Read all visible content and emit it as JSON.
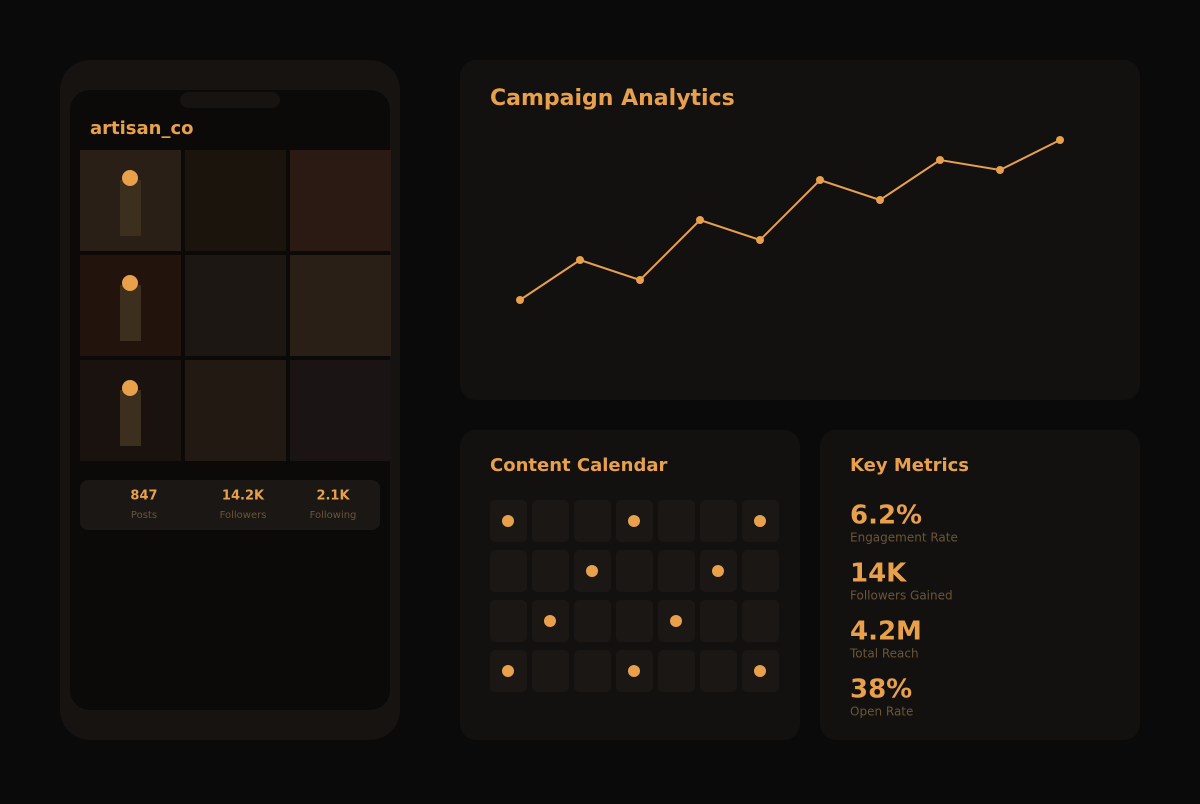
{
  "phone": {
    "username": "artisan_co",
    "stats": [
      {
        "value": "847",
        "label": "Posts"
      },
      {
        "value": "14.2K",
        "label": "Followers"
      },
      {
        "value": "2.1K",
        "label": "Following"
      }
    ]
  },
  "chart_data": {
    "type": "line",
    "title": "Campaign Analytics",
    "categories": [
      null,
      null,
      null,
      null,
      null,
      null,
      null,
      null,
      null,
      null
    ],
    "values": [
      40,
      80,
      60,
      120,
      100,
      160,
      140,
      180,
      170,
      200
    ],
    "color": "#e8a04a",
    "ylim": [
      0,
      240
    ]
  },
  "calendar": {
    "title": "Content Calendar",
    "rows": [
      [
        true,
        false,
        false,
        true,
        false,
        false,
        true
      ],
      [
        false,
        false,
        true,
        false,
        false,
        true,
        false
      ],
      [
        false,
        true,
        false,
        false,
        true,
        false,
        false
      ],
      [
        true,
        false,
        false,
        true,
        false,
        false,
        true
      ]
    ]
  },
  "metrics": {
    "title": "Key Metrics",
    "items": [
      {
        "value": "6.2%",
        "label": "Engagement Rate"
      },
      {
        "value": "14K",
        "label": "Followers Gained"
      },
      {
        "value": "4.2M",
        "label": "Total Reach"
      },
      {
        "value": "38%",
        "label": "Open Rate"
      }
    ]
  }
}
